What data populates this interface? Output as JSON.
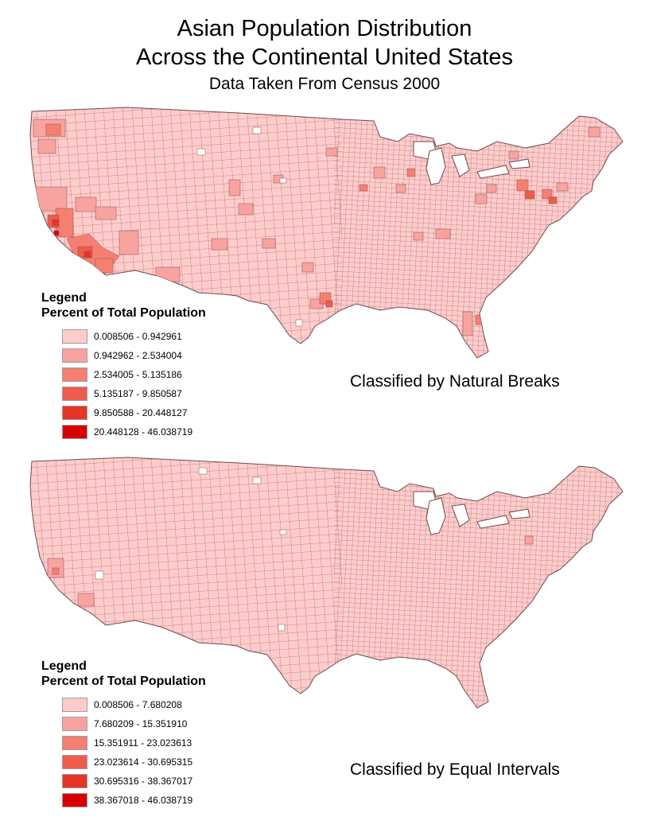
{
  "title": {
    "line1": "Asian Population Distribution",
    "line2": "Across the Continental United States",
    "subtitle": "Data Taken From Census 2000"
  },
  "colors": {
    "ramp": [
      "#ffcccc",
      "#f9a3a0",
      "#f58072",
      "#ef5c4c",
      "#e63525",
      "#d60000"
    ],
    "county_border": "#8a5050"
  },
  "maps": [
    {
      "legend_title": "Legend",
      "legend_subtitle": "Percent of Total Population",
      "classes": [
        "0.008506 - 0.942961",
        "0.942962 - 2.534004",
        "2.534005 - 5.135186",
        "5.135187 - 9.850587",
        "9.850588 - 20.448127",
        "20.448128 - 46.038719"
      ],
      "classification_label": "Classified by Natural Breaks"
    },
    {
      "legend_title": "Legend",
      "legend_subtitle": "Percent of Total Population",
      "classes": [
        "0.008506 - 7.680208",
        "7.680209 - 15.351910",
        "15.351911 - 23.023613",
        "23.023614 - 30.695315",
        "30.695316 - 38.367017",
        "38.367018 - 46.038719"
      ],
      "classification_label": "Classified by Equal Intervals"
    }
  ]
}
